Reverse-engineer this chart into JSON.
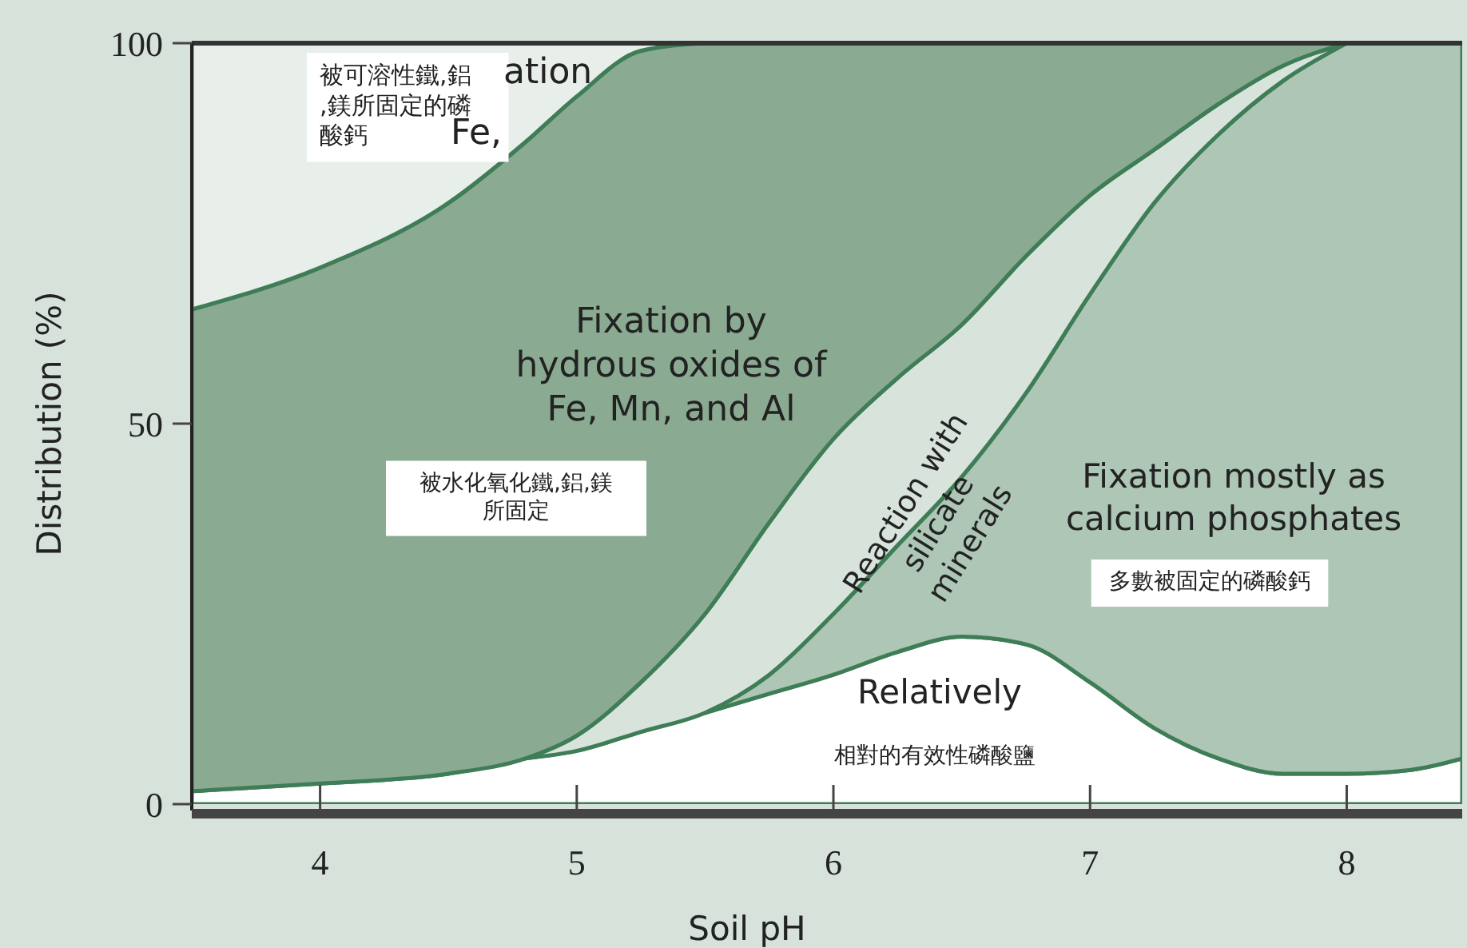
{
  "chart_data": {
    "type": "area",
    "stacked": true,
    "xlabel": "Soil pH",
    "ylabel": "Distribution (%)",
    "x": [
      3.5,
      4,
      4.5,
      4.8,
      5,
      5.25,
      5.5,
      5.75,
      6,
      6.25,
      6.5,
      6.75,
      7,
      7.25,
      7.5,
      7.75,
      8,
      8.25,
      8.45
    ],
    "xlim": [
      3.5,
      8.45
    ],
    "xticks": [
      4,
      5,
      6,
      7,
      8
    ],
    "ylim": [
      0,
      100
    ],
    "yticks": [
      0,
      50,
      100
    ],
    "series": [
      {
        "name": "Relatively",
        "color": "#ffffff",
        "values": [
          1.7,
          2.7,
          4,
          6,
          7,
          9.5,
          12,
          14.5,
          17,
          20,
          22,
          21,
          16,
          10,
          6,
          4,
          4,
          4.5,
          6
        ]
      },
      {
        "name": "Fixation mostly as calcium phosphates",
        "color": "#adc6b5",
        "values": [
          null,
          null,
          null,
          null,
          null,
          null,
          0,
          2.5,
          8,
          14,
          21,
          33,
          51,
          69,
          82,
          91,
          96,
          95.5,
          94
        ]
      },
      {
        "name": "Reaction with silicate minerals",
        "color": "#d8e3dc",
        "values": [
          null,
          null,
          null,
          0,
          2,
          6.5,
          13,
          20,
          23,
          22,
          20,
          18,
          13,
          7,
          4,
          2,
          0,
          null,
          null
        ]
      },
      {
        "name": "Fixation by hydrous oxides of Fe, Mn, and Al",
        "color": "#8aaa92",
        "values": [
          63.3,
          67.8,
          75,
          81,
          84,
          83,
          75,
          63,
          52,
          44,
          37,
          28,
          20,
          14,
          8,
          3,
          0,
          null,
          null
        ]
      },
      {
        "name": "被可溶性鐵,鋁,鎂所固定的磷酸鈣",
        "color": "#e8eee9",
        "values": [
          35,
          29.5,
          21,
          13,
          7,
          1,
          0,
          null,
          null,
          null,
          null,
          null,
          null,
          null,
          null,
          null,
          null,
          null,
          null
        ]
      }
    ],
    "annotations": [
      "ation",
      "Fe,",
      "被水化氧化鐵,鋁,鎂所固定",
      "多數被固定的磷酸鈣",
      "相對的有效性磷酸鹽"
    ]
  }
}
